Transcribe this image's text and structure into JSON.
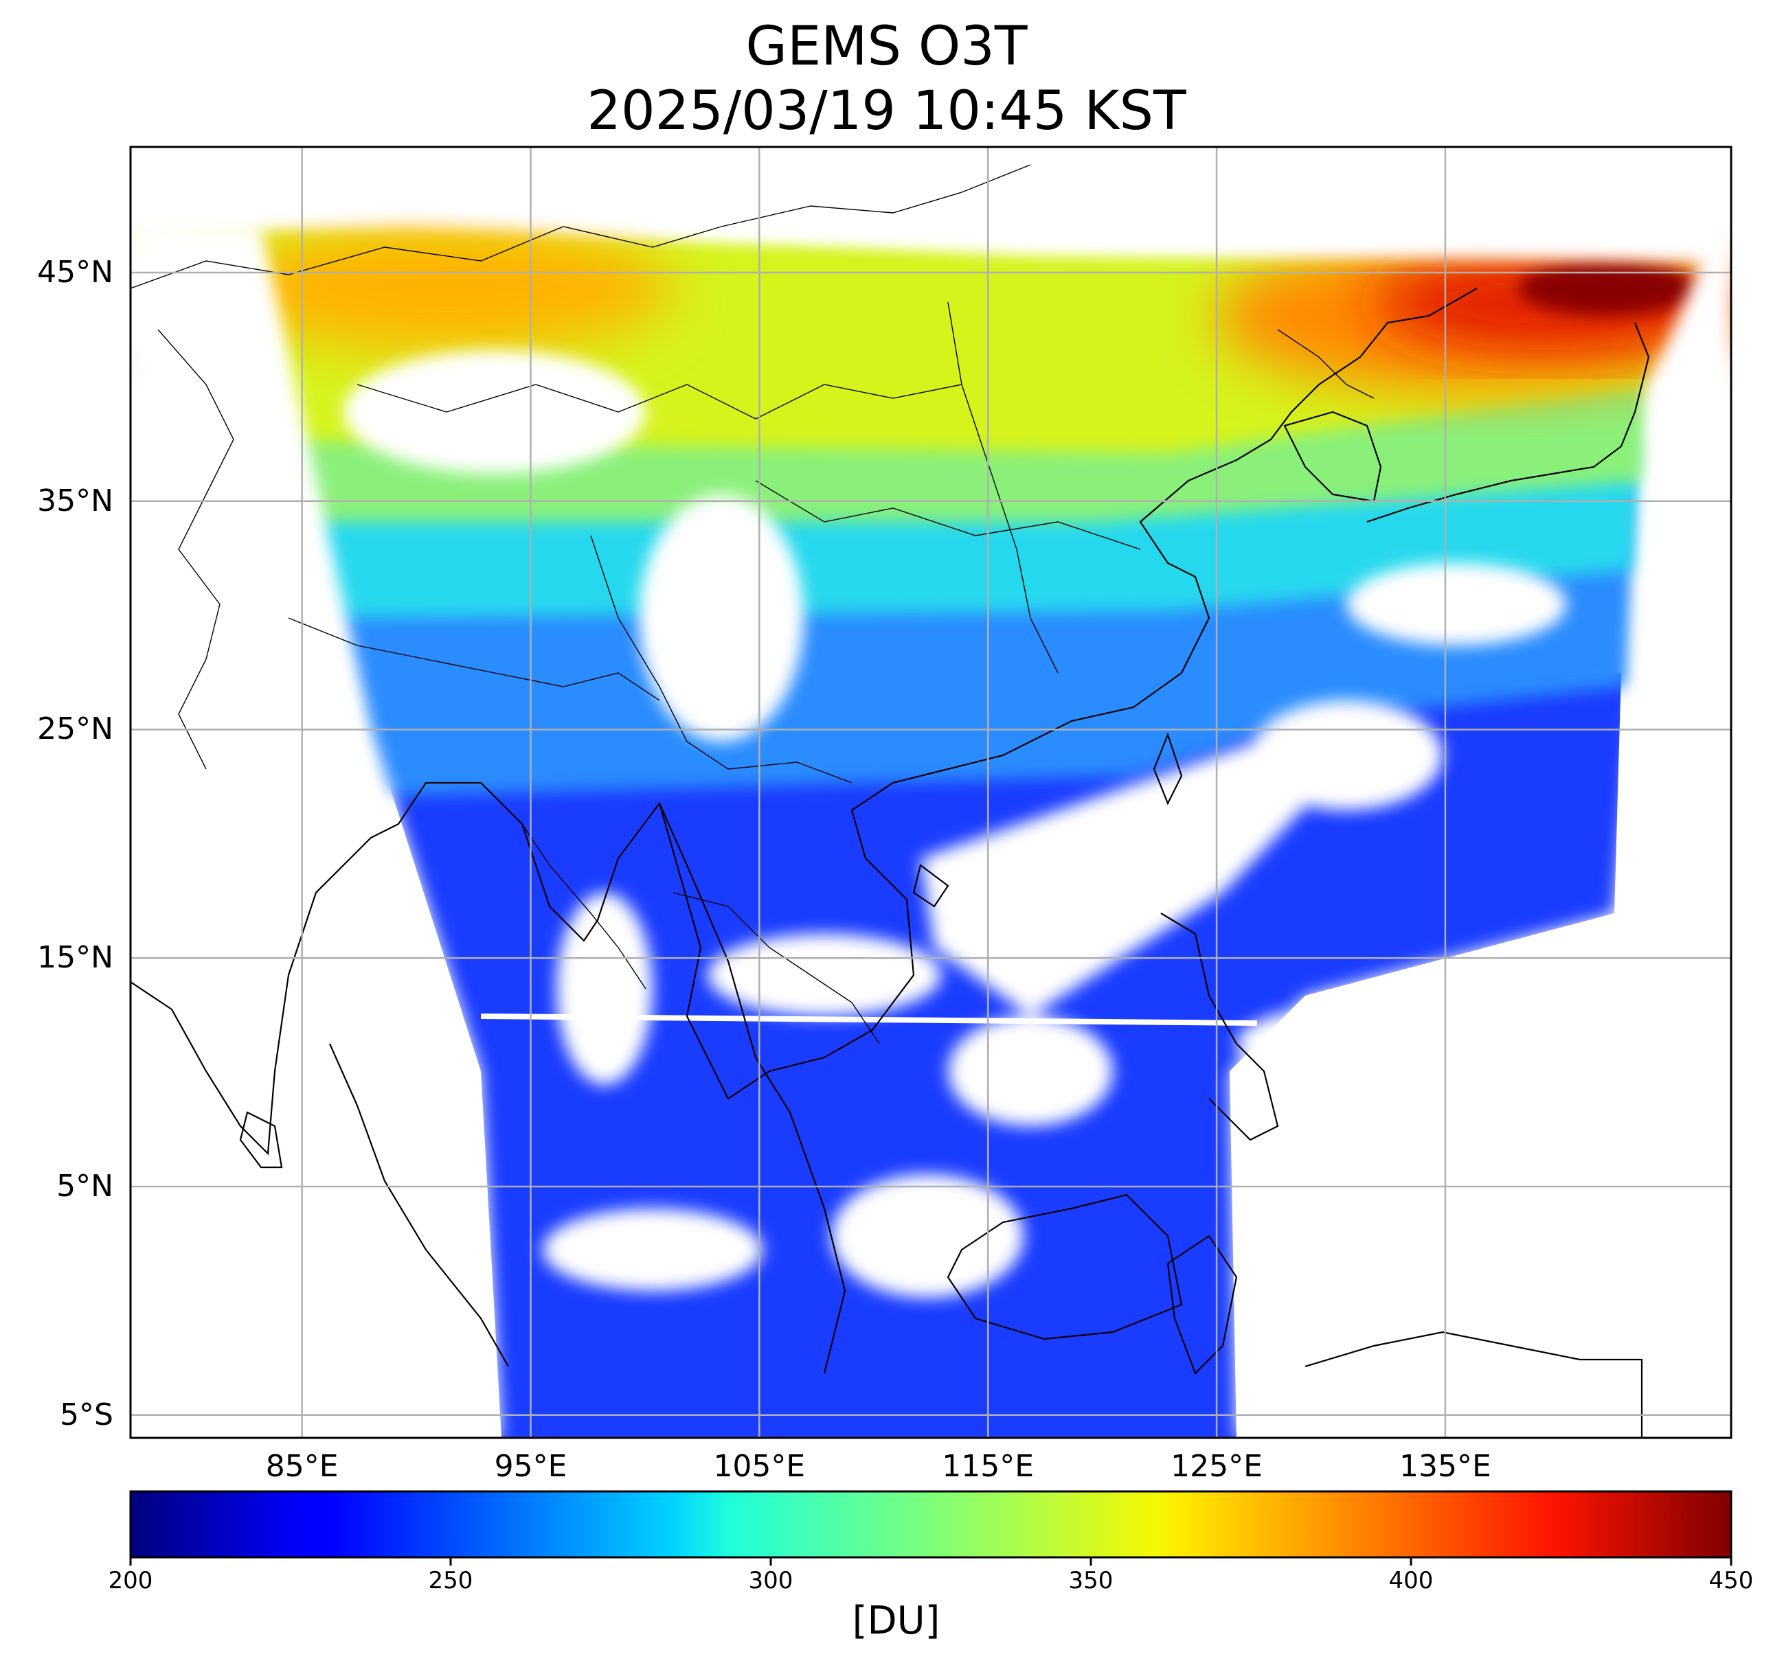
{
  "title": {
    "line1": "GEMS O3T",
    "line2": "2025/03/19 10:45 KST"
  },
  "map": {
    "projection": "PlateCarree",
    "lon_range": [
      77.5,
      147.5
    ],
    "lat_range": [
      -6,
      50.5
    ],
    "grid": true,
    "coastlines_and_borders": true,
    "lat_ticks": [
      {
        "value": 45,
        "label": "45°N"
      },
      {
        "value": 35,
        "label": "35°N"
      },
      {
        "value": 25,
        "label": "25°N"
      },
      {
        "value": 15,
        "label": "15°N"
      },
      {
        "value": 5,
        "label": "5°N"
      },
      {
        "value": -5,
        "label": "5°S"
      }
    ],
    "lon_ticks": [
      {
        "value": 85,
        "label": "85°E"
      },
      {
        "value": 95,
        "label": "95°E"
      },
      {
        "value": 105,
        "label": "105°E"
      },
      {
        "value": 115,
        "label": "115°E"
      },
      {
        "value": 125,
        "label": "125°E"
      },
      {
        "value": 135,
        "label": "135°E"
      }
    ],
    "ozone_regions_du": [
      {
        "region": "northeast-china-korea-japan-sea",
        "value": 430
      },
      {
        "region": "north-china-mongolia",
        "value": 355
      },
      {
        "region": "central-china",
        "value": 325
      },
      {
        "region": "south-china-taiwan",
        "value": 280
      },
      {
        "region": "bay-of-bengal-southeast-asia-pacific",
        "value": 245
      }
    ]
  },
  "colorbar": {
    "colormap": "jet",
    "min": 200,
    "max": 450,
    "ticks": [
      200,
      250,
      300,
      350,
      400,
      450
    ],
    "label": "[DU]"
  }
}
